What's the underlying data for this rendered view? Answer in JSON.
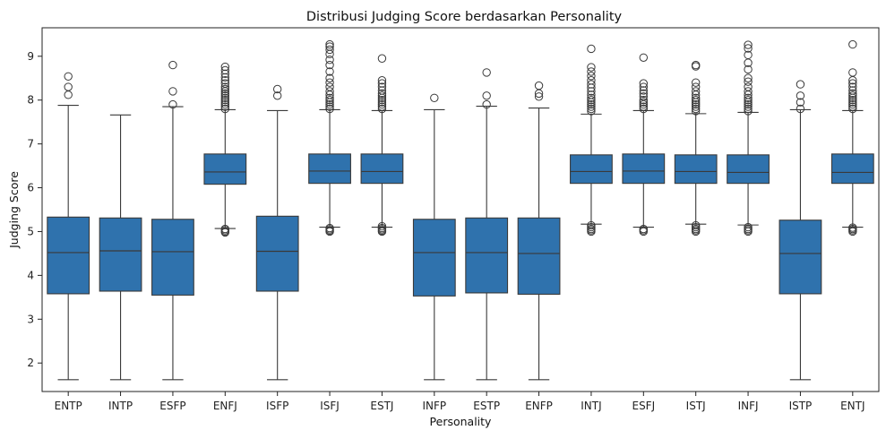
{
  "chart_data": {
    "type": "box",
    "title": "Distribusi Judging Score berdasarkan Personality",
    "xlabel": "Personality",
    "ylabel": "Judging Score",
    "ylim": [
      1.35,
      9.65
    ],
    "yticks": [
      2,
      3,
      4,
      5,
      6,
      7,
      8,
      9
    ],
    "grid": false,
    "legend": "none",
    "box_color": "#2f72ad",
    "edge_color": "#3a3a3a",
    "categories": [
      "ENTP",
      "INTP",
      "ESFP",
      "ENFJ",
      "ISFP",
      "ISFJ",
      "ESTJ",
      "INFP",
      "ESTP",
      "ENFP",
      "INTJ",
      "ESFJ",
      "ISTJ",
      "INFJ",
      "ISTP",
      "ENTJ"
    ],
    "boxes": [
      {
        "name": "ENTP",
        "whisker_low": 1.62,
        "q1": 3.58,
        "median": 4.52,
        "q3": 5.33,
        "whisker_high": 7.88,
        "outliers": [
          8.12,
          8.3,
          8.54
        ]
      },
      {
        "name": "INTP",
        "whisker_low": 1.62,
        "q1": 3.64,
        "median": 4.56,
        "q3": 5.31,
        "whisker_high": 7.66,
        "outliers": []
      },
      {
        "name": "ESFP",
        "whisker_low": 1.62,
        "q1": 3.55,
        "median": 4.54,
        "q3": 5.28,
        "whisker_high": 7.85,
        "outliers": [
          7.9,
          8.2,
          8.8
        ]
      },
      {
        "name": "ENFJ",
        "whisker_low": 5.07,
        "q1": 6.08,
        "median": 6.36,
        "q3": 6.77,
        "whisker_high": 7.78,
        "outliers": [
          4.98,
          5.0,
          5.03,
          5.06,
          7.8,
          7.85,
          7.9,
          7.95,
          8.0,
          8.05,
          8.1,
          8.15,
          8.2,
          8.25,
          8.3,
          8.38,
          8.45,
          8.52,
          8.6,
          8.68,
          8.76
        ]
      },
      {
        "name": "ISFP",
        "whisker_low": 1.62,
        "q1": 3.64,
        "median": 4.55,
        "q3": 5.35,
        "whisker_high": 7.76,
        "outliers": [
          8.1,
          8.25
        ]
      },
      {
        "name": "ISFJ",
        "whisker_low": 5.1,
        "q1": 6.1,
        "median": 6.38,
        "q3": 6.77,
        "whisker_high": 7.78,
        "outliers": [
          5.0,
          5.02,
          5.05,
          5.08,
          7.8,
          7.85,
          7.9,
          7.95,
          8.0,
          8.05,
          8.12,
          8.2,
          8.3,
          8.4,
          8.5,
          8.65,
          8.8,
          8.92,
          9.05,
          9.15,
          9.22,
          9.27
        ]
      },
      {
        "name": "ESTJ",
        "whisker_low": 5.1,
        "q1": 6.1,
        "median": 6.37,
        "q3": 6.77,
        "whisker_high": 7.76,
        "outliers": [
          5.0,
          5.02,
          5.05,
          5.08,
          5.12,
          7.8,
          7.85,
          7.9,
          7.95,
          8.0,
          8.05,
          8.1,
          8.15,
          8.22,
          8.3,
          8.38,
          8.45,
          8.95
        ]
      },
      {
        "name": "INFP",
        "whisker_low": 1.62,
        "q1": 3.53,
        "median": 4.52,
        "q3": 5.28,
        "whisker_high": 7.78,
        "outliers": [
          8.05
        ]
      },
      {
        "name": "ESTP",
        "whisker_low": 1.62,
        "q1": 3.6,
        "median": 4.52,
        "q3": 5.31,
        "whisker_high": 7.86,
        "outliers": [
          7.9,
          8.1,
          8.63
        ]
      },
      {
        "name": "ENFP",
        "whisker_low": 1.62,
        "q1": 3.57,
        "median": 4.5,
        "q3": 5.31,
        "whisker_high": 7.82,
        "outliers": [
          8.08,
          8.15,
          8.33
        ]
      },
      {
        "name": "INTJ",
        "whisker_low": 5.17,
        "q1": 6.1,
        "median": 6.37,
        "q3": 6.75,
        "whisker_high": 7.68,
        "outliers": [
          5.0,
          5.03,
          5.06,
          5.1,
          5.14,
          7.75,
          7.8,
          7.85,
          7.9,
          7.95,
          8.0,
          8.05,
          8.12,
          8.2,
          8.28,
          8.36,
          8.45,
          8.55,
          8.65,
          8.75,
          9.17
        ]
      },
      {
        "name": "ESFJ",
        "whisker_low": 5.1,
        "q1": 6.1,
        "median": 6.38,
        "q3": 6.77,
        "whisker_high": 7.76,
        "outliers": [
          5.0,
          5.03,
          5.06,
          7.8,
          7.85,
          7.9,
          7.95,
          8.0,
          8.08,
          8.15,
          8.22,
          8.3,
          8.38,
          8.97
        ]
      },
      {
        "name": "ISTJ",
        "whisker_low": 5.17,
        "q1": 6.1,
        "median": 6.37,
        "q3": 6.75,
        "whisker_high": 7.69,
        "outliers": [
          5.0,
          5.03,
          5.06,
          5.1,
          5.14,
          7.75,
          7.8,
          7.85,
          7.9,
          7.95,
          8.0,
          8.05,
          8.12,
          8.2,
          8.3,
          8.4,
          8.77,
          8.8
        ]
      },
      {
        "name": "INFJ",
        "whisker_low": 5.15,
        "q1": 6.1,
        "median": 6.35,
        "q3": 6.75,
        "whisker_high": 7.72,
        "outliers": [
          5.0,
          5.03,
          5.06,
          5.1,
          7.75,
          7.8,
          7.85,
          7.9,
          7.95,
          8.0,
          8.05,
          8.12,
          8.2,
          8.3,
          8.42,
          8.5,
          8.7,
          8.85,
          9.03,
          9.18,
          9.26
        ]
      },
      {
        "name": "ISTP",
        "whisker_low": 1.62,
        "q1": 3.58,
        "median": 4.5,
        "q3": 5.26,
        "whisker_high": 7.78,
        "outliers": [
          7.8,
          7.95,
          8.1,
          8.36
        ]
      },
      {
        "name": "ENTJ",
        "whisker_low": 5.1,
        "q1": 6.1,
        "median": 6.35,
        "q3": 6.77,
        "whisker_high": 7.76,
        "outliers": [
          5.0,
          5.03,
          5.06,
          5.09,
          7.8,
          7.85,
          7.9,
          7.95,
          8.0,
          8.05,
          8.1,
          8.15,
          8.22,
          8.3,
          8.38,
          8.45,
          8.63,
          9.27
        ]
      }
    ]
  }
}
